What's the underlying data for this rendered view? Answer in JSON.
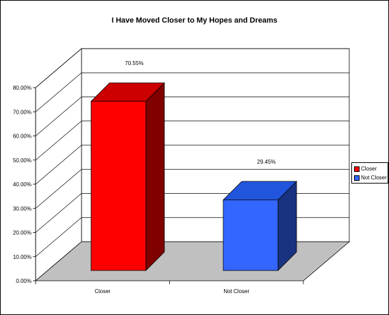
{
  "chart_data": {
    "type": "bar",
    "title": "I Have Moved Closer to My Hopes and Dreams",
    "categories": [
      "Closer",
      "Not Closer"
    ],
    "values": [
      70.55,
      29.45
    ],
    "data_labels": [
      "70.55%",
      "29.45%"
    ],
    "yticks": [
      "0.00%",
      "10.00%",
      "20.00%",
      "30.00%",
      "40.00%",
      "50.00%",
      "60.00%",
      "70.00%",
      "80.00%"
    ],
    "ylim": [
      0,
      80
    ],
    "ytick_step": 10,
    "grid": true,
    "three_d": true,
    "legend": {
      "position": "right",
      "items": [
        {
          "label": "Closer",
          "color": "#ff0000"
        },
        {
          "label": "Not Closer",
          "color": "#3366ff"
        }
      ]
    },
    "colors": {
      "Closer": {
        "front": "#ff0000",
        "top": "#cc0000",
        "side": "#800000"
      },
      "Not Closer": {
        "front": "#3366ff",
        "top": "#2255dd",
        "side": "#1a3380"
      },
      "floor": "#c0c0c0"
    }
  }
}
